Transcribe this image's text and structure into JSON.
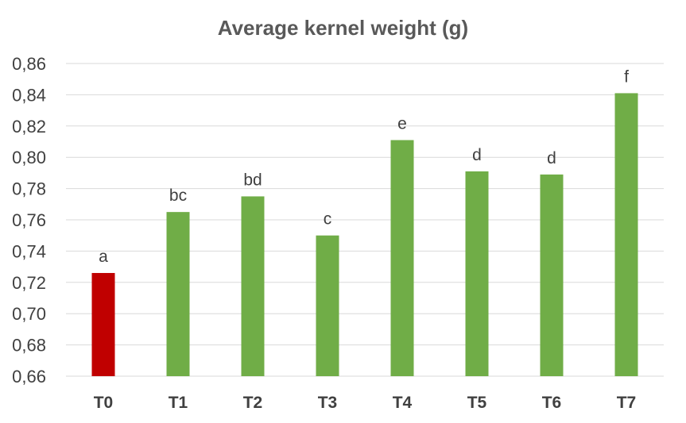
{
  "chart_data": {
    "type": "bar",
    "title": "Average kernel weight (g)",
    "xlabel": "",
    "ylabel": "",
    "categories": [
      "T0",
      "T1",
      "T2",
      "T3",
      "T4",
      "T5",
      "T6",
      "T7"
    ],
    "values": [
      0.726,
      0.765,
      0.775,
      0.75,
      0.811,
      0.791,
      0.789,
      0.841
    ],
    "data_labels": [
      "a",
      "bc",
      "bd",
      "c",
      "e",
      "d",
      "d",
      "f"
    ],
    "bar_colors": [
      "#c00000",
      "#70ad47",
      "#70ad47",
      "#70ad47",
      "#70ad47",
      "#70ad47",
      "#70ad47",
      "#70ad47"
    ],
    "ylim": [
      0.66,
      0.86
    ],
    "y_ticks": [
      0.66,
      0.68,
      0.7,
      0.72,
      0.74,
      0.76,
      0.78,
      0.8,
      0.82,
      0.84,
      0.86
    ],
    "y_tick_labels": [
      "0,66",
      "0,68",
      "0,70",
      "0,72",
      "0,74",
      "0,76",
      "0,78",
      "0,80",
      "0,82",
      "0,84",
      "0,86"
    ],
    "grid": true,
    "legend": "none",
    "gridline_color": "#d9d9d9"
  }
}
